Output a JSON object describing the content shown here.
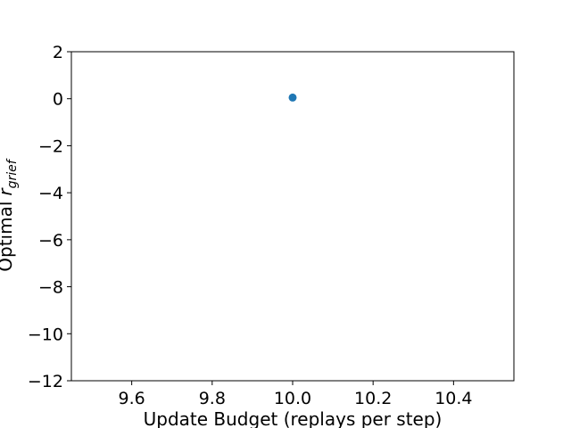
{
  "chart_data": {
    "type": "scatter",
    "title": "",
    "xlabel": "Update Budget (replays per step)",
    "ylabel": "Optimal",
    "ylabel_math_symbol": "r",
    "ylabel_math_subscript": "grief",
    "xlim": [
      9.45,
      10.55
    ],
    "ylim": [
      -12,
      2
    ],
    "xticks": [
      9.6,
      9.8,
      10.0,
      10.2,
      10.4
    ],
    "xtick_labels": [
      "9.6",
      "9.8",
      "10.0",
      "10.2",
      "10.4"
    ],
    "yticks": [
      2,
      0,
      -2,
      -4,
      -6,
      -8,
      -10,
      -12
    ],
    "ytick_labels": [
      "2",
      "0",
      "−2",
      "−4",
      "−6",
      "−8",
      "−10",
      "−12"
    ],
    "grid": false,
    "legend": "none",
    "marker_color": "#1f77b4",
    "points": [
      {
        "x": 10.0,
        "y": 0.05
      }
    ]
  }
}
